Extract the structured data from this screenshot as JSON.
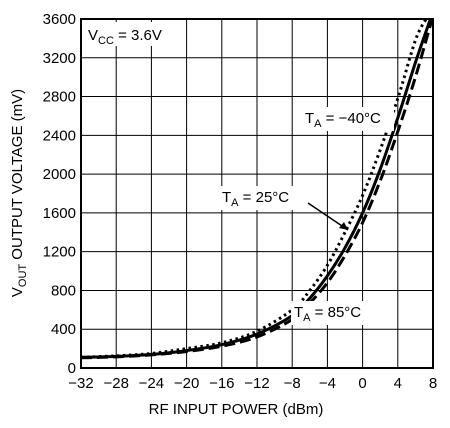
{
  "chart_data": {
    "type": "line",
    "title": "",
    "xlabel": "RF INPUT POWER (dBm)",
    "ylabel": {
      "main": "V",
      "sub": "OUT",
      "rest": " OUTPUT VOLTAGE (mV)"
    },
    "xlim": [
      -32,
      8
    ],
    "ylim": [
      0,
      3600
    ],
    "x_ticks": [
      "-32",
      "-28",
      "-24",
      "-20",
      "-16",
      "-12",
      "-8",
      "-4",
      "0",
      "4",
      "8"
    ],
    "y_ticks": [
      "0",
      "400",
      "800",
      "1200",
      "1600",
      "2000",
      "2400",
      "2800",
      "3200",
      "3600"
    ],
    "grid": true,
    "condition": {
      "main": "V",
      "sub": "CC",
      "rest": " = 3.6V"
    },
    "series": [
      {
        "name": "T = -40°C",
        "style": "dotted",
        "x": [
          -32,
          -28,
          -24,
          -20,
          -16,
          -12,
          -8,
          -6,
          -4,
          -2,
          0,
          2,
          4,
          6,
          7.2
        ],
        "y": [
          110,
          125,
          150,
          200,
          260,
          380,
          600,
          800,
          1060,
          1400,
          1780,
          2250,
          2780,
          3380,
          3600
        ]
      },
      {
        "name": "T = 25°C",
        "style": "solid",
        "x": [
          -32,
          -28,
          -24,
          -20,
          -16,
          -12,
          -8,
          -6,
          -4,
          -2,
          0,
          2,
          4,
          6,
          7.7
        ],
        "y": [
          110,
          120,
          140,
          180,
          240,
          350,
          540,
          720,
          950,
          1240,
          1600,
          2050,
          2580,
          3150,
          3600
        ]
      },
      {
        "name": "T = 85°C",
        "style": "dashed",
        "x": [
          -32,
          -28,
          -24,
          -20,
          -16,
          -12,
          -8,
          -6,
          -4,
          -2,
          0,
          2,
          4,
          6,
          7.9
        ],
        "y": [
          105,
          115,
          135,
          170,
          225,
          320,
          500,
          670,
          880,
          1160,
          1500,
          1930,
          2440,
          3000,
          3600
        ]
      }
    ],
    "annotations": [
      {
        "main": "T",
        "sub": "A",
        "rest": " = −40°C",
        "series": 0
      },
      {
        "main": "T",
        "sub": "A",
        "rest": " = 25°C",
        "series": 1
      },
      {
        "main": "T",
        "sub": "A",
        "rest": " = 85°C",
        "series": 2
      }
    ]
  }
}
